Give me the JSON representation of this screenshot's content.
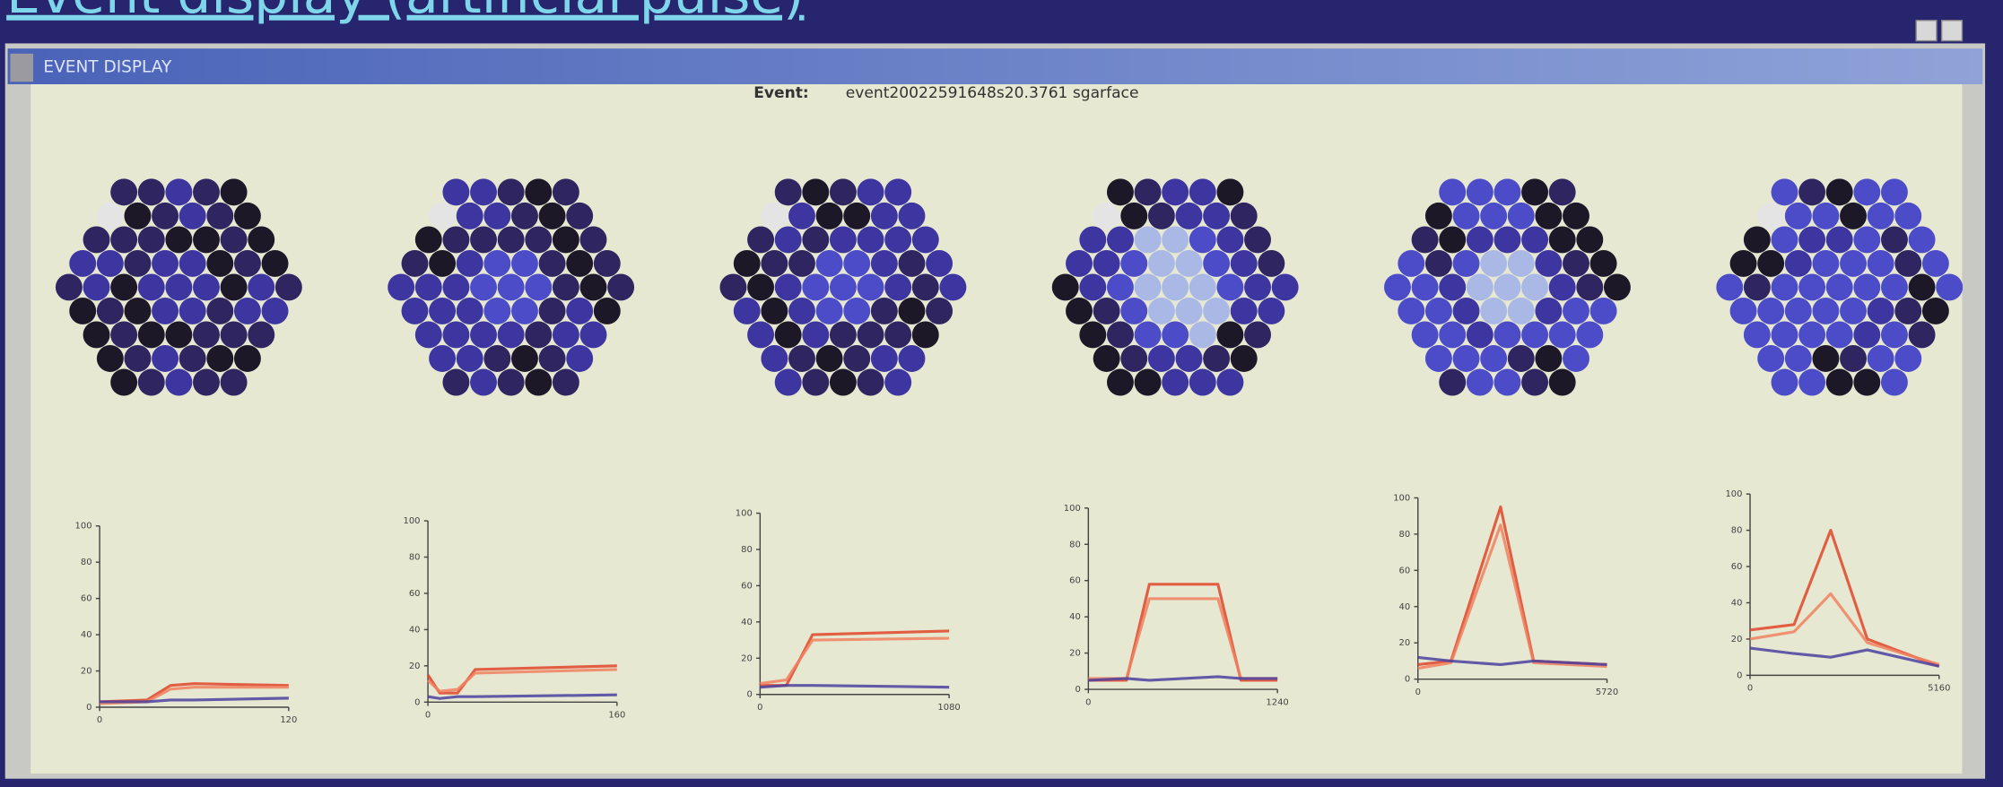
{
  "header": {
    "title": "Event display (artificial pulse)"
  },
  "window": {
    "title": "EVENT DISPLAY",
    "event_label": "Event:",
    "event_id": "event20022591648s20.3761 sgarface"
  },
  "chart_data": [
    {
      "type": "line",
      "x": [
        0,
        30,
        45,
        60,
        120
      ],
      "xlim": [
        0,
        120
      ],
      "xticks": [
        0,
        120
      ],
      "ylim": [
        0,
        100
      ],
      "yticks": [
        0,
        20,
        40,
        60,
        80,
        100
      ],
      "series": [
        {
          "color": "#e0452a",
          "values": [
            3,
            4,
            12,
            13,
            12
          ]
        },
        {
          "color": "#f08060",
          "values": [
            2,
            3,
            10,
            11,
            11
          ]
        },
        {
          "color": "#4a3fa0",
          "values": [
            3,
            3,
            4,
            4,
            5
          ]
        }
      ]
    },
    {
      "type": "line",
      "x": [
        0,
        10,
        25,
        40,
        160
      ],
      "xlim": [
        0,
        160
      ],
      "xticks": [
        0,
        160
      ],
      "ylim": [
        0,
        100
      ],
      "yticks": [
        0,
        20,
        40,
        60,
        80,
        100
      ],
      "series": [
        {
          "color": "#e0452a",
          "values": [
            15,
            5,
            5,
            18,
            20
          ]
        },
        {
          "color": "#f08060",
          "values": [
            12,
            6,
            7,
            16,
            18
          ]
        },
        {
          "color": "#4a3fa0",
          "values": [
            3,
            2,
            3,
            3,
            4
          ]
        }
      ]
    },
    {
      "type": "line",
      "x": [
        0,
        150,
        300,
        1080
      ],
      "xlim": [
        0,
        1080
      ],
      "xticks": [
        0,
        1080
      ],
      "ylim": [
        0,
        100
      ],
      "yticks": [
        0,
        20,
        40,
        60,
        80,
        100
      ],
      "series": [
        {
          "color": "#e0452a",
          "values": [
            5,
            5,
            33,
            35
          ]
        },
        {
          "color": "#f08060",
          "values": [
            6,
            8,
            30,
            31
          ]
        },
        {
          "color": "#4a3fa0",
          "values": [
            4,
            5,
            5,
            4
          ]
        }
      ]
    },
    {
      "type": "line",
      "x": [
        0,
        250,
        400,
        850,
        1000,
        1240
      ],
      "xlim": [
        0,
        1240
      ],
      "xticks": [
        0,
        1240
      ],
      "ylim": [
        0,
        100
      ],
      "yticks": [
        0,
        20,
        40,
        60,
        80,
        100
      ],
      "series": [
        {
          "color": "#e0452a",
          "values": [
            5,
            5,
            58,
            58,
            5,
            5
          ]
        },
        {
          "color": "#f08060",
          "values": [
            6,
            6,
            50,
            50,
            6,
            6
          ]
        },
        {
          "color": "#4a3fa0",
          "values": [
            5,
            6,
            5,
            7,
            6,
            6
          ]
        }
      ]
    },
    {
      "type": "line",
      "x": [
        0,
        1000,
        2500,
        3500,
        5720
      ],
      "xlim": [
        0,
        5720
      ],
      "xticks": [
        0,
        5720
      ],
      "ylim": [
        0,
        100
      ],
      "yticks": [
        0,
        20,
        40,
        60,
        80,
        100
      ],
      "series": [
        {
          "color": "#e0452a",
          "values": [
            8,
            10,
            95,
            10,
            8
          ]
        },
        {
          "color": "#f08060",
          "values": [
            6,
            9,
            85,
            9,
            7
          ]
        },
        {
          "color": "#4a3fa0",
          "values": [
            12,
            10,
            8,
            10,
            8
          ]
        }
      ]
    },
    {
      "type": "line",
      "x": [
        0,
        1200,
        2200,
        3200,
        5160
      ],
      "xlim": [
        0,
        5160
      ],
      "xticks": [
        0,
        5160
      ],
      "ylim": [
        0,
        100
      ],
      "yticks": [
        0,
        20,
        40,
        60,
        80,
        100
      ],
      "series": [
        {
          "color": "#e0452a",
          "values": [
            25,
            28,
            80,
            20,
            5
          ]
        },
        {
          "color": "#f08060",
          "values": [
            20,
            24,
            45,
            18,
            6
          ]
        },
        {
          "color": "#4a3fa0",
          "values": [
            15,
            12,
            10,
            14,
            5
          ]
        }
      ]
    }
  ]
}
